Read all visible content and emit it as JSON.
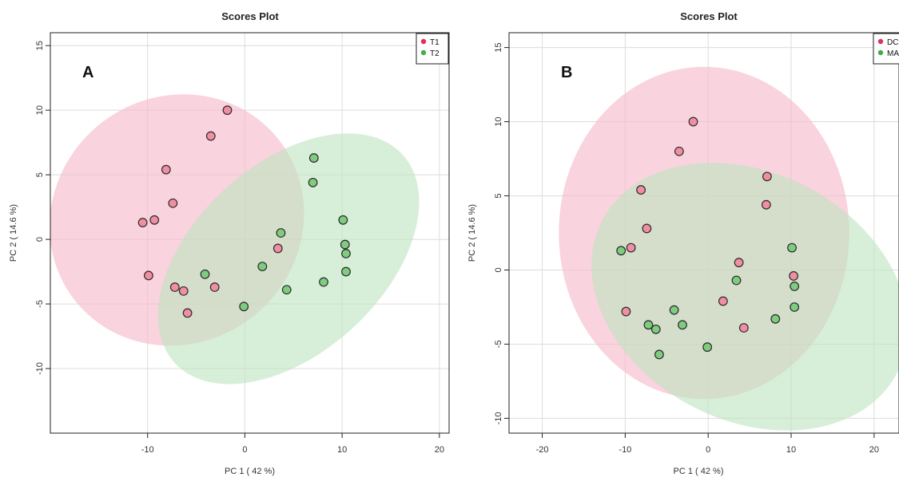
{
  "chart_data": [
    {
      "type": "scatter",
      "panel_label": "A",
      "title": "Scores Plot",
      "xlabel": "PC 1 ( 42 %)",
      "ylabel": "PC 2 ( 14.6 %)",
      "xlim": [
        -20,
        21
      ],
      "ylim": [
        -15,
        16
      ],
      "xticks": [
        -10,
        0,
        10,
        20
      ],
      "yticks": [
        -10,
        -5,
        0,
        5,
        10,
        15
      ],
      "grid": true,
      "legend_position": "top-right",
      "series": [
        {
          "name": "T1",
          "color": "#e0305a",
          "fill": "#f08ea3",
          "ellipse_fill": "#f5b8c8",
          "ellipse": {
            "cx": -7,
            "cy": 1.5,
            "rx": 9.7,
            "ry": 13.1,
            "angle": 95
          },
          "points": [
            [
              -1.8,
              10
            ],
            [
              -3.5,
              8
            ],
            [
              -8.1,
              5.4
            ],
            [
              -7.4,
              2.8
            ],
            [
              -10.5,
              1.3
            ],
            [
              -9.3,
              1.5
            ],
            [
              -9.9,
              -2.8
            ],
            [
              -7.2,
              -3.7
            ],
            [
              -6.3,
              -4
            ],
            [
              -5.9,
              -5.7
            ],
            [
              -3.1,
              -3.7
            ],
            [
              3.4,
              -0.7
            ]
          ]
        },
        {
          "name": "T2",
          "color": "#3cb043",
          "fill": "#7fcb7f",
          "ellipse_fill": "#bfe3c0",
          "ellipse": {
            "cx": 4.5,
            "cy": -1.5,
            "rx": 14.5,
            "ry": 8,
            "angle": 27
          },
          "points": [
            [
              7.1,
              6.3
            ],
            [
              7,
              4.4
            ],
            [
              10.1,
              1.5
            ],
            [
              10.3,
              -0.4
            ],
            [
              10.4,
              -1.1
            ],
            [
              10.4,
              -2.5
            ],
            [
              3.7,
              0.5
            ],
            [
              8.1,
              -3.3
            ],
            [
              1.8,
              -2.1
            ],
            [
              4.3,
              -3.9
            ],
            [
              -4.1,
              -2.7
            ],
            [
              -0.1,
              -5.2
            ]
          ]
        }
      ]
    },
    {
      "type": "scatter",
      "panel_label": "B",
      "title": "Scores Plot",
      "xlabel": "PC 1 ( 42 %)",
      "ylabel": "PC 2 ( 14.6 %)",
      "xlim": [
        -24,
        23
      ],
      "ylim": [
        -11,
        16
      ],
      "xticks": [
        -20,
        -10,
        0,
        10,
        20
      ],
      "yticks": [
        -10,
        -5,
        0,
        5,
        10,
        15
      ],
      "grid": true,
      "legend_position": "top-right",
      "series": [
        {
          "name": "DC",
          "color": "#e0305a",
          "fill": "#f08ea3",
          "ellipse_fill": "#f5b8c8",
          "ellipse": {
            "cx": -0.5,
            "cy": 2.5,
            "rx": 17.5,
            "ry": 11.2,
            "angle": 0
          },
          "points": [
            [
              -1.8,
              10
            ],
            [
              -3.5,
              8
            ],
            [
              -8.1,
              5.4
            ],
            [
              -7.4,
              2.8
            ],
            [
              -9.3,
              1.5
            ],
            [
              7.1,
              6.3
            ],
            [
              7,
              4.4
            ],
            [
              3.7,
              0.5
            ],
            [
              10.3,
              -0.4
            ],
            [
              1.8,
              -2.1
            ],
            [
              4.3,
              -3.9
            ],
            [
              -9.9,
              -2.8
            ]
          ]
        },
        {
          "name": "MA",
          "color": "#3cb043",
          "fill": "#7fcb7f",
          "ellipse_fill": "#bfe3c0",
          "ellipse": {
            "cx": 5,
            "cy": -1.8,
            "rx": 19.2,
            "ry": 8.7,
            "angle": -8
          },
          "points": [
            [
              -10.5,
              1.3
            ],
            [
              10.1,
              1.5
            ],
            [
              10.4,
              -1.1
            ],
            [
              10.4,
              -2.5
            ],
            [
              3.4,
              -0.7
            ],
            [
              8.1,
              -3.3
            ],
            [
              -4.1,
              -2.7
            ],
            [
              -7.2,
              -3.7
            ],
            [
              -6.3,
              -4
            ],
            [
              -3.1,
              -3.7
            ],
            [
              -5.9,
              -5.7
            ],
            [
              -0.1,
              -5.2
            ]
          ]
        }
      ]
    }
  ]
}
